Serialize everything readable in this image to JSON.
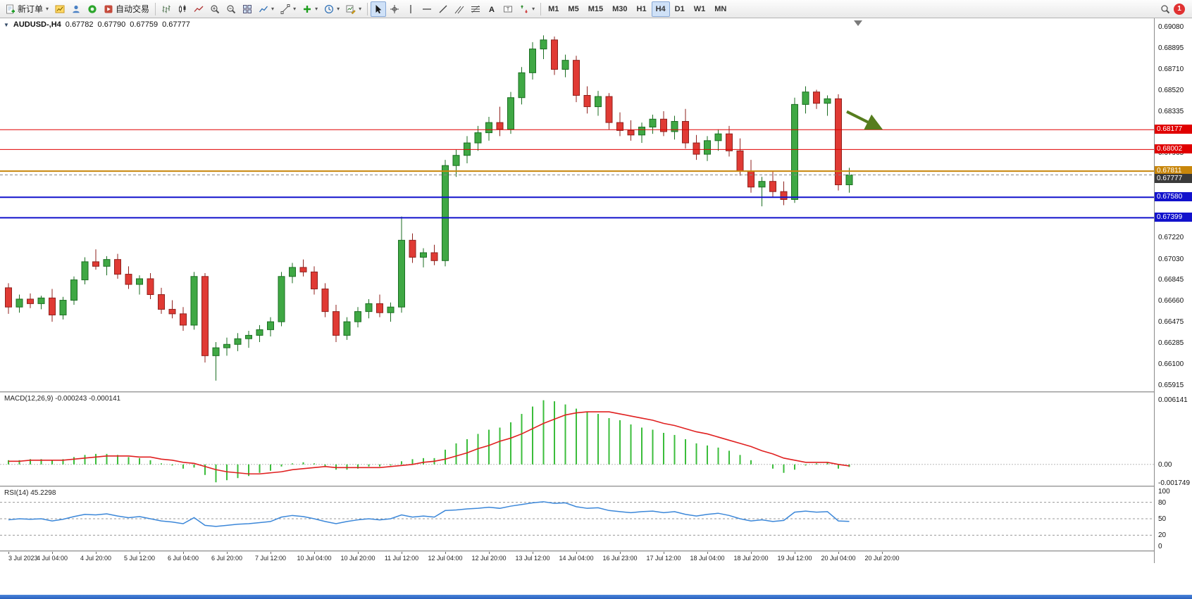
{
  "toolbar": {
    "new_order_label": "新订单",
    "autotrading_label": "自动交易",
    "timeframes": [
      "M1",
      "M5",
      "M15",
      "M30",
      "H1",
      "H4",
      "D1",
      "W1",
      "MN"
    ],
    "active_timeframe": "H4",
    "notification_count": "1"
  },
  "chart": {
    "symbol_period": "AUDUSD-,H4",
    "ohlc": {
      "open": "0.67782",
      "high": "0.67790",
      "low": "0.67759",
      "close": "0.67777"
    }
  },
  "indicators": {
    "macd": {
      "label": "MACD(12,26,9)",
      "values": "-0.000243 -0.000141",
      "scale": [
        "0.006141",
        "0.00",
        "-0.001749"
      ]
    },
    "rsi": {
      "label": "RSI(14)",
      "value": "45.2298",
      "scale": [
        "100",
        "80",
        "50",
        "20",
        "0"
      ]
    }
  },
  "chart_data": {
    "type": "candlestick",
    "symbol_period": "AUDUSD-,H4",
    "bull_color": "#3fa844",
    "bull_border": "#1b6e22",
    "bear_color": "#e03a34",
    "bear_border": "#8f211d",
    "price_range": [
      0.65865,
      0.69161
    ],
    "price_ticks": [
      "0.69080",
      "0.68895",
      "0.68710",
      "0.68520",
      "0.68335",
      "0.67965",
      "0.67220",
      "0.67030",
      "0.66845",
      "0.66660",
      "0.66475",
      "0.66285",
      "0.66100",
      "0.65915"
    ],
    "levels": [
      {
        "label": "0.68177",
        "price": 0.68177,
        "color": "#e00000",
        "width": 1
      },
      {
        "label": "0.68002",
        "price": 0.68002,
        "color": "#e00000",
        "width": 1
      },
      {
        "label": "0.67811",
        "price": 0.67811,
        "color": "#c8860b",
        "width": 2
      },
      {
        "label": "0.67580",
        "price": 0.6758,
        "color": "#1212cc",
        "width": 2
      },
      {
        "label": "0.67399",
        "price": 0.67399,
        "color": "#1212cc",
        "width": 2
      }
    ],
    "current_price": {
      "label": "0.67777",
      "value": 0.67777,
      "color": "#3a3a3a"
    },
    "annotation_arrow": {
      "price": 0.682,
      "color": "#567d1e",
      "note": "green-down-right-arrow"
    },
    "label_every": 4,
    "time_labels": [
      "3 Jul 2023",
      "4 Jul 04:00",
      "4 Jul 20:00",
      "5 Jul 12:00",
      "6 Jul 04:00",
      "6 Jul 20:00",
      "7 Jul 12:00",
      "10 Jul 04:00",
      "10 Jul 20:00",
      "11 Jul 12:00",
      "12 Jul 04:00",
      "12 Jul 20:00",
      "13 Jul 12:00",
      "14 Jul 04:00",
      "16 Jul 23:00",
      "17 Jul 12:00",
      "18 Jul 04:00",
      "18 Jul 20:00",
      "19 Jul 12:00",
      "20 Jul 04:00",
      "20 Jul 20:00"
    ],
    "candles": [
      [
        0.6678,
        0.6682,
        0.6655,
        0.6661
      ],
      [
        0.6661,
        0.6672,
        0.6656,
        0.6668
      ],
      [
        0.6668,
        0.6673,
        0.666,
        0.6664
      ],
      [
        0.6664,
        0.6671,
        0.6659,
        0.6669
      ],
      [
        0.6669,
        0.6677,
        0.6648,
        0.6654
      ],
      [
        0.6654,
        0.667,
        0.665,
        0.6667
      ],
      [
        0.6667,
        0.6688,
        0.6663,
        0.6685
      ],
      [
        0.6685,
        0.6705,
        0.6681,
        0.6701
      ],
      [
        0.6701,
        0.6712,
        0.6694,
        0.6697
      ],
      [
        0.6697,
        0.6706,
        0.6689,
        0.6703
      ],
      [
        0.6703,
        0.6708,
        0.6686,
        0.669
      ],
      [
        0.669,
        0.6697,
        0.6677,
        0.6681
      ],
      [
        0.6681,
        0.6689,
        0.6672,
        0.6686
      ],
      [
        0.6686,
        0.6691,
        0.6668,
        0.6672
      ],
      [
        0.6672,
        0.6678,
        0.6655,
        0.6659
      ],
      [
        0.6659,
        0.6667,
        0.6651,
        0.6655
      ],
      [
        0.6655,
        0.6661,
        0.664,
        0.6645
      ],
      [
        0.6645,
        0.6692,
        0.6641,
        0.6688
      ],
      [
        0.6688,
        0.6691,
        0.6612,
        0.6618
      ],
      [
        0.6618,
        0.663,
        0.6596,
        0.6625
      ],
      [
        0.6625,
        0.6634,
        0.6618,
        0.6628
      ],
      [
        0.6628,
        0.6638,
        0.6622,
        0.6633
      ],
      [
        0.6633,
        0.664,
        0.6625,
        0.6636
      ],
      [
        0.6636,
        0.6645,
        0.663,
        0.6641
      ],
      [
        0.6641,
        0.6652,
        0.6635,
        0.6648
      ],
      [
        0.6648,
        0.6692,
        0.6644,
        0.6688
      ],
      [
        0.6688,
        0.67,
        0.6682,
        0.6696
      ],
      [
        0.6696,
        0.6703,
        0.6688,
        0.6692
      ],
      [
        0.6692,
        0.6697,
        0.6672,
        0.6677
      ],
      [
        0.6677,
        0.6682,
        0.6652,
        0.6657
      ],
      [
        0.6657,
        0.6663,
        0.663,
        0.6636
      ],
      [
        0.6636,
        0.6652,
        0.6632,
        0.6648
      ],
      [
        0.6648,
        0.6661,
        0.6643,
        0.6657
      ],
      [
        0.6657,
        0.6668,
        0.6651,
        0.6664
      ],
      [
        0.6664,
        0.6672,
        0.6652,
        0.6656
      ],
      [
        0.6656,
        0.6665,
        0.6648,
        0.6661
      ],
      [
        0.6661,
        0.6741,
        0.6656,
        0.672
      ],
      [
        0.672,
        0.6726,
        0.67,
        0.6705
      ],
      [
        0.6705,
        0.6713,
        0.6696,
        0.6709
      ],
      [
        0.6709,
        0.6716,
        0.6698,
        0.6702
      ],
      [
        0.6702,
        0.6791,
        0.6697,
        0.6786
      ],
      [
        0.6786,
        0.68,
        0.6776,
        0.6795
      ],
      [
        0.6795,
        0.6812,
        0.6788,
        0.6806
      ],
      [
        0.6806,
        0.6821,
        0.6799,
        0.6815
      ],
      [
        0.6815,
        0.6829,
        0.6808,
        0.6824
      ],
      [
        0.6824,
        0.6838,
        0.6812,
        0.6818
      ],
      [
        0.6818,
        0.6851,
        0.6814,
        0.6846
      ],
      [
        0.6846,
        0.6873,
        0.684,
        0.6868
      ],
      [
        0.6868,
        0.6895,
        0.6862,
        0.6889
      ],
      [
        0.6889,
        0.6901,
        0.688,
        0.6897
      ],
      [
        0.6897,
        0.69,
        0.6866,
        0.6871
      ],
      [
        0.6871,
        0.6884,
        0.6864,
        0.6879
      ],
      [
        0.6879,
        0.6883,
        0.6842,
        0.6848
      ],
      [
        0.6848,
        0.6856,
        0.6832,
        0.6838
      ],
      [
        0.6838,
        0.6852,
        0.683,
        0.6847
      ],
      [
        0.6847,
        0.685,
        0.6818,
        0.6824
      ],
      [
        0.6824,
        0.6833,
        0.6812,
        0.6817
      ],
      [
        0.6817,
        0.6826,
        0.6808,
        0.6813
      ],
      [
        0.6813,
        0.6824,
        0.6806,
        0.682
      ],
      [
        0.682,
        0.6831,
        0.6814,
        0.6827
      ],
      [
        0.6827,
        0.6834,
        0.6812,
        0.6816
      ],
      [
        0.6816,
        0.683,
        0.6809,
        0.6825
      ],
      [
        0.6825,
        0.6836,
        0.6801,
        0.6806
      ],
      [
        0.6806,
        0.6813,
        0.6791,
        0.6796
      ],
      [
        0.6796,
        0.6812,
        0.679,
        0.6808
      ],
      [
        0.6808,
        0.6818,
        0.6799,
        0.6814
      ],
      [
        0.6814,
        0.6821,
        0.6794,
        0.6799
      ],
      [
        0.6799,
        0.681,
        0.6777,
        0.6781
      ],
      [
        0.6781,
        0.6791,
        0.6762,
        0.6767
      ],
      [
        0.6767,
        0.6776,
        0.675,
        0.6772
      ],
      [
        0.6772,
        0.6781,
        0.6758,
        0.6763
      ],
      [
        0.6763,
        0.6772,
        0.6751,
        0.6756
      ],
      [
        0.6756,
        0.6846,
        0.6753,
        0.684
      ],
      [
        0.684,
        0.6856,
        0.6832,
        0.6851
      ],
      [
        0.6851,
        0.6853,
        0.6836,
        0.6841
      ],
      [
        0.6841,
        0.6848,
        0.683,
        0.6845
      ],
      [
        0.6845,
        0.6849,
        0.6764,
        0.6769
      ],
      [
        0.6769,
        0.6784,
        0.6762,
        0.67777
      ]
    ],
    "macd": {
      "range": [
        -0.00202,
        0.00681
      ],
      "histogram_color": "#3bbd3b",
      "signal_color": "#e02020",
      "histogram": [
        0.0004,
        0.0004,
        0.0005,
        0.0005,
        0.0004,
        0.0005,
        0.0007,
        0.0009,
        0.001,
        0.001,
        0.0009,
        0.0007,
        0.0006,
        0.0004,
        0.0001,
        -0.0001,
        -0.0004,
        -0.0003,
        -0.001,
        -0.0017,
        -0.0015,
        -0.0013,
        -0.0011,
        -0.0008,
        -0.0006,
        -0.0002,
        0.0001,
        0.0002,
        0.0001,
        -0.0002,
        -0.0005,
        -0.0005,
        -0.0004,
        -0.0002,
        -0.0002,
        -0.0001,
        0.0003,
        0.0005,
        0.0006,
        0.0006,
        0.0014,
        0.002,
        0.0024,
        0.0029,
        0.0033,
        0.0035,
        0.004,
        0.0048,
        0.0055,
        0.0061,
        0.006,
        0.0057,
        0.0053,
        0.005,
        0.0048,
        0.0044,
        0.0042,
        0.0038,
        0.0035,
        0.0033,
        0.003,
        0.0028,
        0.0024,
        0.002,
        0.0018,
        0.0016,
        0.0013,
        0.0009,
        0.0004,
        0.0,
        -0.0004,
        -0.0008,
        -0.0005,
        -0.0001,
        0.0001,
        0.0002,
        -0.0004,
        -0.000243
      ],
      "signal": [
        0.0003,
        0.0003,
        0.0004,
        0.0004,
        0.0004,
        0.0004,
        0.0005,
        0.0006,
        0.0007,
        0.0008,
        0.0008,
        0.0008,
        0.0007,
        0.0007,
        0.0005,
        0.0004,
        0.0002,
        0.0001,
        -0.0002,
        -0.0005,
        -0.0007,
        -0.0008,
        -0.0009,
        -0.0009,
        -0.0008,
        -0.0007,
        -0.0005,
        -0.0004,
        -0.0003,
        -0.0002,
        -0.0003,
        -0.0003,
        -0.0003,
        -0.0003,
        -0.0003,
        -0.0002,
        -0.0001,
        0.0,
        0.0002,
        0.0003,
        0.0005,
        0.0008,
        0.0011,
        0.0015,
        0.0018,
        0.0022,
        0.0025,
        0.0029,
        0.0034,
        0.0039,
        0.0043,
        0.0047,
        0.0049,
        0.005,
        0.005,
        0.005,
        0.0048,
        0.0046,
        0.0044,
        0.0042,
        0.0039,
        0.0037,
        0.0034,
        0.0031,
        0.0029,
        0.0026,
        0.0023,
        0.002,
        0.0017,
        0.0013,
        0.001,
        0.0006,
        0.0004,
        0.0002,
        0.0002,
        0.0002,
        0.0,
        -0.000141
      ]
    },
    "rsi": {
      "line_color": "#3b87d9",
      "levels": [
        80,
        50,
        20
      ],
      "values": [
        48,
        50,
        49,
        50,
        46,
        49,
        54,
        58,
        57,
        59,
        55,
        52,
        54,
        50,
        46,
        44,
        41,
        52,
        38,
        36,
        38,
        40,
        41,
        43,
        45,
        53,
        56,
        54,
        50,
        45,
        41,
        45,
        48,
        50,
        48,
        50,
        57,
        53,
        55,
        53,
        65,
        66,
        68,
        69,
        71,
        69,
        73,
        76,
        79,
        81,
        78,
        79,
        72,
        69,
        70,
        65,
        63,
        61,
        63,
        64,
        61,
        63,
        58,
        55,
        58,
        60,
        56,
        50,
        46,
        48,
        45,
        47,
        62,
        64,
        62,
        63,
        46,
        45.2298
      ]
    }
  }
}
